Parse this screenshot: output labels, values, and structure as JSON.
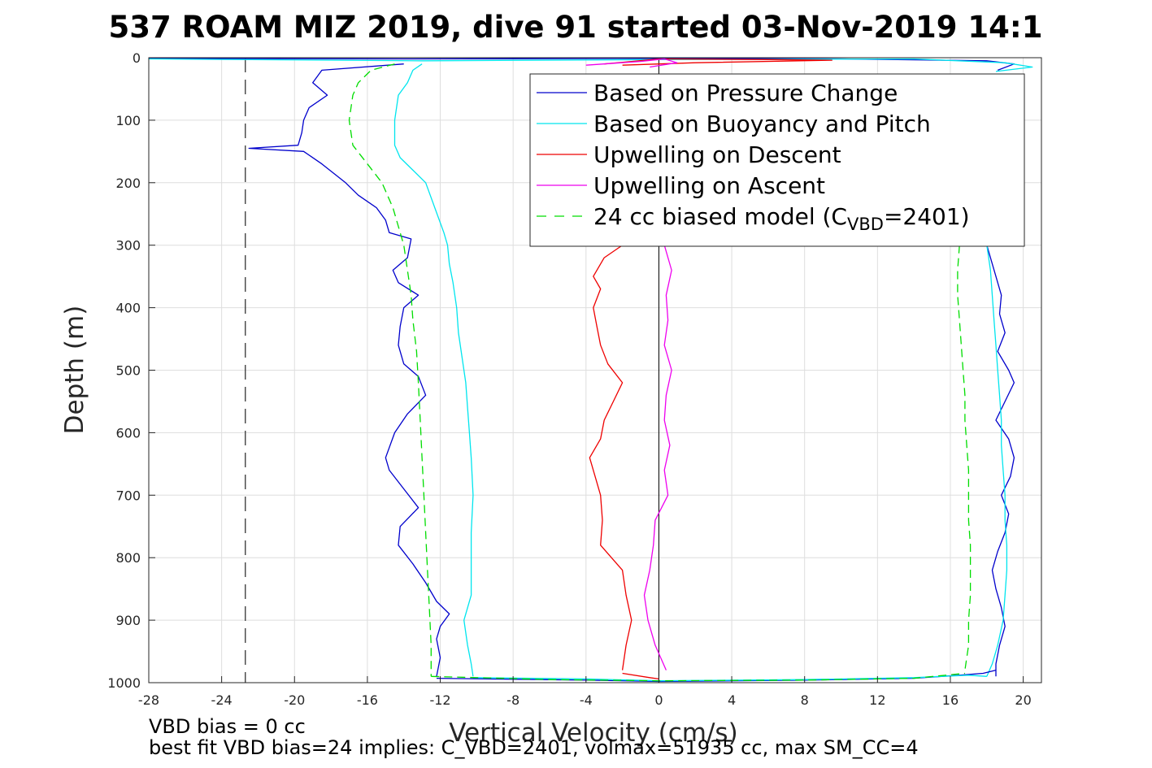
{
  "chart_data": {
    "type": "line",
    "title": "537 ROAM MIZ 2019, dive 91 started 03-Nov-2019 14:1",
    "xlabel": "Vertical Velocity (cm/s)",
    "ylabel": "Depth (m)",
    "xlim": [
      -28,
      21
    ],
    "ylim": [
      0,
      1000
    ],
    "y_reversed": true,
    "grid": true,
    "legend_position": "top-right",
    "xticks": [
      -28,
      -24,
      -20,
      -16,
      -12,
      -8,
      -4,
      0,
      4,
      8,
      12,
      16,
      20
    ],
    "xtick_labels": [
      "-28",
      "-24",
      "-20",
      "-16",
      "-12",
      "-8",
      "-4",
      "0",
      "4",
      "8",
      "12",
      "16",
      "20"
    ],
    "yticks": [
      0,
      100,
      200,
      300,
      400,
      500,
      600,
      700,
      800,
      900,
      1000
    ],
    "ytick_labels": [
      "0",
      "100",
      "200",
      "300",
      "400",
      "500",
      "600",
      "700",
      "800",
      "900",
      "1000"
    ],
    "vbd_bias_line_x": -22.7,
    "zero_line_x": 0,
    "legend": {
      "entries": [
        {
          "prefix": "Based on Pressure Change",
          "sub": "",
          "suffix": "",
          "color": "#0000cc",
          "dash": "solid"
        },
        {
          "prefix": "Based on Buoyancy and Pitch",
          "sub": "",
          "suffix": "",
          "color": "#00e5ee",
          "dash": "solid"
        },
        {
          "prefix": "Upwelling on Descent",
          "sub": "",
          "suffix": "",
          "color": "#ee0000",
          "dash": "solid"
        },
        {
          "prefix": "Upwelling on Ascent",
          "sub": "",
          "suffix": "",
          "color": "#ee00ee",
          "dash": "solid"
        },
        {
          "prefix": "24 cc biased model (C",
          "sub": "VBD",
          "suffix": "=2401)",
          "color": "#00dd00",
          "dash": "dashed"
        }
      ]
    },
    "series": [
      {
        "key": "pressure_down",
        "color": "#0000cc",
        "dash": "solid",
        "points": [
          [
            -14,
            10
          ],
          [
            -18.5,
            20
          ],
          [
            -19,
            40
          ],
          [
            -18.2,
            60
          ],
          [
            -19.2,
            80
          ],
          [
            -19.5,
            100
          ],
          [
            -19.6,
            120
          ],
          [
            -19.8,
            140
          ],
          [
            -22.5,
            145
          ],
          [
            -19.5,
            150
          ],
          [
            -18.5,
            170
          ],
          [
            -17.2,
            200
          ],
          [
            -16.5,
            220
          ],
          [
            -15.5,
            240
          ],
          [
            -15,
            260
          ],
          [
            -14.8,
            280
          ],
          [
            -13.6,
            290
          ],
          [
            -13.8,
            320
          ],
          [
            -14.6,
            340
          ],
          [
            -14.3,
            360
          ],
          [
            -13.2,
            380
          ],
          [
            -14,
            400
          ],
          [
            -14.2,
            430
          ],
          [
            -14.3,
            460
          ],
          [
            -14,
            490
          ],
          [
            -13.2,
            510
          ],
          [
            -12.8,
            540
          ],
          [
            -13.8,
            570
          ],
          [
            -14.5,
            600
          ],
          [
            -15,
            640
          ],
          [
            -14.8,
            660
          ],
          [
            -14,
            690
          ],
          [
            -13.2,
            720
          ],
          [
            -14.2,
            750
          ],
          [
            -14.3,
            780
          ],
          [
            -13.5,
            810
          ],
          [
            -12.8,
            840
          ],
          [
            -12.2,
            870
          ],
          [
            -11.5,
            890
          ],
          [
            -12,
            910
          ],
          [
            -12.2,
            930
          ],
          [
            -12,
            960
          ],
          [
            -12.2,
            990
          ]
        ]
      },
      {
        "key": "buoyancy_down",
        "color": "#00e5ee",
        "dash": "solid",
        "points": [
          [
            -13,
            10
          ],
          [
            -13.5,
            20
          ],
          [
            -13.8,
            40
          ],
          [
            -14.3,
            60
          ],
          [
            -14.5,
            100
          ],
          [
            -14.5,
            140
          ],
          [
            -14.2,
            160
          ],
          [
            -13.5,
            180
          ],
          [
            -12.8,
            200
          ],
          [
            -12.3,
            240
          ],
          [
            -11.8,
            280
          ],
          [
            -11.6,
            300
          ],
          [
            -11.5,
            330
          ],
          [
            -11.3,
            360
          ],
          [
            -11.1,
            400
          ],
          [
            -11,
            440
          ],
          [
            -10.8,
            480
          ],
          [
            -10.6,
            520
          ],
          [
            -10.5,
            560
          ],
          [
            -10.4,
            600
          ],
          [
            -10.3,
            640
          ],
          [
            -10.2,
            700
          ],
          [
            -10.3,
            760
          ],
          [
            -10.3,
            820
          ],
          [
            -10.3,
            860
          ],
          [
            -10.7,
            900
          ],
          [
            -10.5,
            940
          ],
          [
            -10.3,
            970
          ],
          [
            -10.2,
            990
          ]
        ]
      },
      {
        "key": "model_down",
        "color": "#00dd00",
        "dash": "dashed",
        "points": [
          [
            -14.5,
            10
          ],
          [
            -15.8,
            20
          ],
          [
            -16.5,
            40
          ],
          [
            -16.8,
            60
          ],
          [
            -17,
            100
          ],
          [
            -16.8,
            140
          ],
          [
            -16,
            170
          ],
          [
            -15.2,
            200
          ],
          [
            -14.6,
            240
          ],
          [
            -14.3,
            270
          ],
          [
            -14,
            300
          ],
          [
            -13.8,
            340
          ],
          [
            -13.6,
            380
          ],
          [
            -13.5,
            420
          ],
          [
            -13.3,
            470
          ],
          [
            -13.2,
            520
          ],
          [
            -13.1,
            580
          ],
          [
            -13,
            640
          ],
          [
            -12.9,
            700
          ],
          [
            -12.8,
            760
          ],
          [
            -12.7,
            820
          ],
          [
            -12.6,
            880
          ],
          [
            -12.5,
            940
          ],
          [
            -12.5,
            990
          ]
        ]
      },
      {
        "key": "upwell_descent",
        "color": "#ee0000",
        "dash": "solid",
        "points": [
          [
            -2,
            300
          ],
          [
            -3,
            320
          ],
          [
            -3.6,
            350
          ],
          [
            -3.2,
            370
          ],
          [
            -3.6,
            400
          ],
          [
            -3.4,
            430
          ],
          [
            -3.2,
            460
          ],
          [
            -2.8,
            490
          ],
          [
            -2,
            520
          ],
          [
            -2.5,
            550
          ],
          [
            -3,
            580
          ],
          [
            -3.2,
            610
          ],
          [
            -3.8,
            640
          ],
          [
            -3.5,
            670
          ],
          [
            -3.2,
            700
          ],
          [
            -3.1,
            740
          ],
          [
            -3.2,
            780
          ],
          [
            -2,
            820
          ],
          [
            -1.8,
            860
          ],
          [
            -1.5,
            900
          ],
          [
            -1.8,
            940
          ],
          [
            -2,
            980
          ]
        ]
      },
      {
        "key": "upwell_ascent",
        "color": "#ee00ee",
        "dash": "solid",
        "points": [
          [
            0.3,
            300
          ],
          [
            0.7,
            340
          ],
          [
            0.4,
            380
          ],
          [
            0.5,
            420
          ],
          [
            0.3,
            460
          ],
          [
            0.7,
            500
          ],
          [
            0.4,
            540
          ],
          [
            0.3,
            580
          ],
          [
            0.6,
            620
          ],
          [
            0.3,
            660
          ],
          [
            0.5,
            700
          ],
          [
            -0.2,
            740
          ],
          [
            -0.3,
            780
          ],
          [
            -0.5,
            820
          ],
          [
            -0.8,
            860
          ],
          [
            -0.6,
            900
          ],
          [
            -0.2,
            940
          ],
          [
            0.4,
            980
          ]
        ]
      },
      {
        "key": "pressure_up",
        "color": "#0000cc",
        "dash": "solid",
        "points": [
          [
            18,
            300
          ],
          [
            18.2,
            320
          ],
          [
            18.5,
            350
          ],
          [
            18.8,
            380
          ],
          [
            18.7,
            410
          ],
          [
            19,
            440
          ],
          [
            18.6,
            470
          ],
          [
            19.2,
            500
          ],
          [
            19.5,
            520
          ],
          [
            19,
            550
          ],
          [
            18.5,
            580
          ],
          [
            19.2,
            610
          ],
          [
            19.5,
            640
          ],
          [
            19.3,
            670
          ],
          [
            18.8,
            700
          ],
          [
            19.2,
            730
          ],
          [
            19,
            760
          ],
          [
            18.6,
            790
          ],
          [
            18.3,
            820
          ],
          [
            18.5,
            850
          ],
          [
            18.8,
            880
          ],
          [
            19,
            910
          ],
          [
            18.7,
            940
          ],
          [
            18.5,
            970
          ],
          [
            18.5,
            990
          ]
        ]
      },
      {
        "key": "buoyancy_up",
        "color": "#00e5ee",
        "dash": "solid",
        "points": [
          [
            18,
            300
          ],
          [
            18.2,
            340
          ],
          [
            18.3,
            380
          ],
          [
            18.4,
            420
          ],
          [
            18.5,
            460
          ],
          [
            18.6,
            500
          ],
          [
            18.7,
            540
          ],
          [
            18.8,
            580
          ],
          [
            18.8,
            620
          ],
          [
            18.9,
            660
          ],
          [
            19,
            700
          ],
          [
            19,
            740
          ],
          [
            19.1,
            780
          ],
          [
            19.1,
            820
          ],
          [
            19,
            860
          ],
          [
            18.9,
            900
          ],
          [
            18.6,
            940
          ],
          [
            18.3,
            970
          ],
          [
            18,
            990
          ]
        ]
      },
      {
        "key": "model_up",
        "color": "#00dd00",
        "dash": "dashed",
        "points": [
          [
            16.5,
            300
          ],
          [
            16.4,
            340
          ],
          [
            16.4,
            380
          ],
          [
            16.5,
            420
          ],
          [
            16.6,
            460
          ],
          [
            16.7,
            500
          ],
          [
            16.8,
            540
          ],
          [
            16.8,
            580
          ],
          [
            16.9,
            620
          ],
          [
            17,
            660
          ],
          [
            17,
            700
          ],
          [
            17,
            740
          ],
          [
            17.1,
            780
          ],
          [
            17.1,
            820
          ],
          [
            17.1,
            860
          ],
          [
            17,
            900
          ],
          [
            17,
            940
          ],
          [
            16.8,
            980
          ]
        ]
      },
      {
        "key": "surface_spikes_pressure",
        "color": "#0000cc",
        "dash": "solid",
        "points": [
          [
            -28,
            1
          ],
          [
            -14,
            2
          ],
          [
            0,
            1
          ],
          [
            10,
            2
          ],
          [
            18,
            5
          ],
          [
            19.5,
            10
          ],
          [
            18.6,
            20
          ]
        ]
      },
      {
        "key": "surface_spikes_buoyancy",
        "color": "#00e5ee",
        "dash": "solid",
        "points": [
          [
            -28,
            2
          ],
          [
            -13,
            5
          ],
          [
            0,
            3
          ],
          [
            14,
            2
          ],
          [
            19,
            8
          ],
          [
            20.5,
            15
          ],
          [
            18.5,
            22
          ]
        ]
      },
      {
        "key": "surface_red",
        "color": "#ee0000",
        "dash": "solid",
        "points": [
          [
            -3,
            10
          ],
          [
            0,
            2
          ],
          [
            6,
            3
          ],
          [
            9.5,
            4
          ],
          [
            2,
            8
          ],
          [
            -2,
            12
          ]
        ]
      },
      {
        "key": "surface_magenta",
        "color": "#ee00ee",
        "dash": "solid",
        "points": [
          [
            -4,
            12
          ],
          [
            -1,
            6
          ],
          [
            0.3,
            2
          ],
          [
            1,
            8
          ],
          [
            -0.5,
            15
          ]
        ]
      },
      {
        "key": "bottom_turn_blue",
        "color": "#0000cc",
        "dash": "solid",
        "points": [
          [
            -12.2,
            993
          ],
          [
            -4,
            996
          ],
          [
            0,
            998
          ],
          [
            8,
            996
          ],
          [
            14,
            993
          ],
          [
            16.5,
            988
          ],
          [
            17.8,
            985
          ],
          [
            18.5,
            980
          ]
        ]
      },
      {
        "key": "bottom_turn_cyan",
        "color": "#00e5ee",
        "dash": "solid",
        "points": [
          [
            -10.2,
            992
          ],
          [
            -4,
            994
          ],
          [
            0,
            997
          ],
          [
            8,
            995
          ],
          [
            14,
            992
          ],
          [
            17,
            988
          ],
          [
            18,
            990
          ]
        ]
      },
      {
        "key": "bottom_turn_green",
        "color": "#00dd00",
        "dash": "dashed",
        "points": [
          [
            -12.5,
            990
          ],
          [
            -6,
            995
          ],
          [
            0,
            997
          ],
          [
            8,
            996
          ],
          [
            14,
            993
          ],
          [
            16.8,
            985
          ]
        ]
      },
      {
        "key": "bottom_turn_red",
        "color": "#ee0000",
        "dash": "solid",
        "points": [
          [
            -2,
            985
          ],
          [
            -0.5,
            992
          ],
          [
            0,
            994
          ]
        ]
      }
    ]
  },
  "annotations": {
    "vbd_bias": "VBD bias = 0 cc",
    "best_fit": "best fit VBD bias=24 implies: C_VBD=2401, volmax=51935 cc, max SM_CC=4"
  }
}
